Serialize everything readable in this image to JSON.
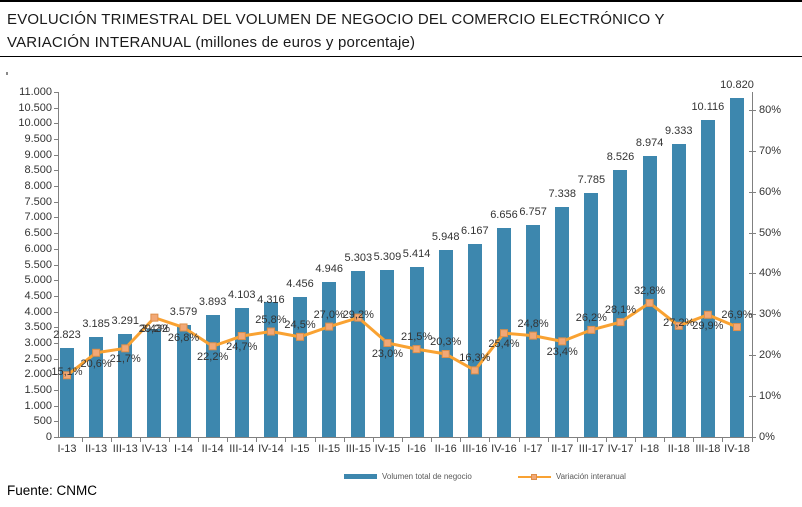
{
  "title": {
    "line1": "EVOLUCIÓN TRIMESTRAL DEL VOLUMEN DE NEGOCIO DEL COMERCIO ELECTRÓNICO Y",
    "line2": "VARIACIÓN INTERANUAL (millones de euros y porcentaje)"
  },
  "source": "Fuente: CNMC",
  "legend": {
    "volume_label": "Volumen total de negocio",
    "variation_label": "Variación interanual"
  },
  "colors": {
    "bar": "#3D87AE",
    "line": "#F9A232",
    "marker_fill": "#F2A876",
    "marker_stroke": "#DE8F4A",
    "axis": "#808080",
    "label_text": "#333333",
    "legend_text": "#595959"
  },
  "chart_data": {
    "type": "bar+line",
    "title": "EVOLUCIÓN TRIMESTRAL DEL VOLUMEN DE NEGOCIO DEL COMERCIO ELECTRÓNICO Y VARIACIÓN INTERANUAL (millones de euros y porcentaje)",
    "categories": [
      "I-13",
      "II-13",
      "III-13",
      "IV-13",
      "I-14",
      "II-14",
      "III-14",
      "IV-14",
      "I-15",
      "II-15",
      "III-15",
      "IV-15",
      "I-16",
      "II-16",
      "III-16",
      "IV-16",
      "I-17",
      "II-17",
      "III-17",
      "IV-17",
      "I-18",
      "II-18",
      "III-18",
      "IV-18"
    ],
    "series": [
      {
        "name": "Volumen total de negocio",
        "type": "bar",
        "axis": "left",
        "unit": "millones de euros",
        "values": [
          2823,
          3185,
          3291,
          3432,
          3579,
          3893,
          4103,
          4316,
          4456,
          4946,
          5303,
          5309,
          5414,
          5948,
          6167,
          6656,
          6757,
          7338,
          7785,
          8526,
          8974,
          9333,
          10116,
          10820
        ],
        "labels": [
          "2.823",
          "3.185",
          "3.291",
          "3.432",
          "3.579",
          "3.893",
          "4.103",
          "4.316",
          "4.456",
          "4.946",
          "5.303",
          "5.309",
          "5.414",
          "5.948",
          "6.167",
          "6.656",
          "6.757",
          "7.338",
          "7.785",
          "8.526",
          "8.974",
          "9.333",
          "10.116",
          "10.820"
        ]
      },
      {
        "name": "Variación interanual",
        "type": "line",
        "axis": "right",
        "unit": "porcentaje",
        "values": [
          15.1,
          20.6,
          21.7,
          29.2,
          26.8,
          22.2,
          24.7,
          25.8,
          24.5,
          27.0,
          29.2,
          23.0,
          21.5,
          20.3,
          16.3,
          25.4,
          24.8,
          23.4,
          26.2,
          28.1,
          32.8,
          27.2,
          29.9,
          26.9
        ],
        "labels": [
          "15,1%",
          "20,6%",
          "21,7%",
          "29,2%",
          "26,8%",
          "22,2%",
          "24,7%",
          "25,8%",
          "24,5%",
          "27,0%",
          "29,2%",
          "23,0%",
          "21,5%",
          "20,3%",
          "16,3%",
          "25,4%",
          "24,8%",
          "23,4%",
          "26,2%",
          "28,1%",
          "32,8%",
          "27,2%",
          "29,9%",
          "26,9%"
        ]
      }
    ],
    "left_axis": {
      "min": 0,
      "max": 11000,
      "step": 500,
      "labels": [
        "0",
        "500",
        "1.000",
        "1.500",
        "2.000",
        "2.500",
        "3.000",
        "3.500",
        "4.000",
        "4.500",
        "5.000",
        "5.500",
        "6.000",
        "6.500",
        "7.000",
        "7.500",
        "8.000",
        "8.500",
        "9.000",
        "9.500",
        "10.000",
        "10.500",
        "11.000"
      ]
    },
    "right_axis": {
      "min": 0,
      "max": 80,
      "step": 10,
      "labels": [
        "0%",
        "10%",
        "20%",
        "30%",
        "40%",
        "50%",
        "60%",
        "70%",
        "80%"
      ]
    },
    "grid": "off",
    "legend_position": "bottom",
    "layout_hints": {
      "pct_label_pos": [
        "on",
        "below",
        "below",
        "below",
        "below",
        "below",
        "below",
        "above",
        "above",
        "above",
        "on",
        "below",
        "above",
        "above",
        "above",
        "below",
        "above",
        "below",
        "above",
        "above",
        "above",
        "on",
        "below",
        "above"
      ],
      "bar_label_dy": [
        0,
        0,
        0,
        13,
        0,
        0,
        0,
        11,
        0,
        0,
        0,
        0,
        0,
        0,
        0,
        0,
        0,
        0,
        0,
        0,
        0,
        0,
        0,
        0
      ]
    }
  }
}
